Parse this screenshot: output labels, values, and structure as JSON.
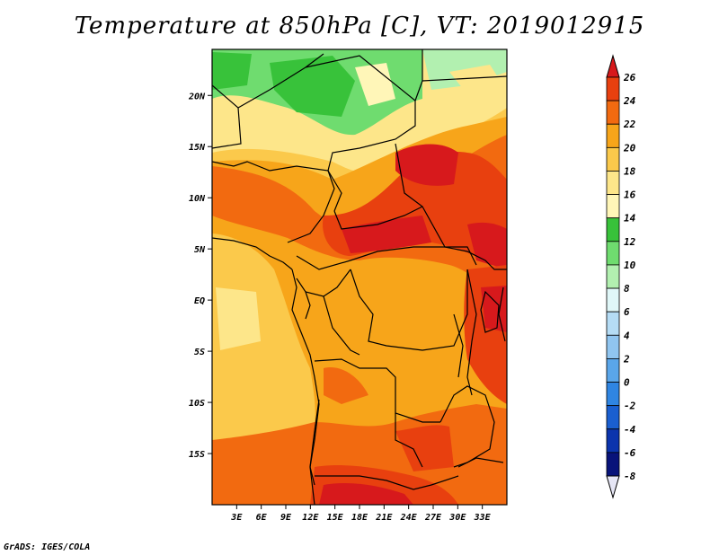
{
  "title": "Temperature at 850hPa [C], VT: 2019012915",
  "credit": "GrADS: IGES/COLA",
  "map": {
    "lon_range": [
      0,
      36
    ],
    "lat_range": [
      -20,
      24.5
    ],
    "lon_ticks": [
      "3E",
      "6E",
      "9E",
      "12E",
      "15E",
      "18E",
      "21E",
      "24E",
      "27E",
      "30E",
      "33E"
    ],
    "lat_ticks": [
      "20N",
      "15N",
      "10N",
      "5N",
      "EQ",
      "5S",
      "10S",
      "15S"
    ]
  },
  "colorbar": {
    "labels": [
      "26",
      "24",
      "22",
      "20",
      "18",
      "16",
      "14",
      "12",
      "10",
      "8",
      "6",
      "4",
      "2",
      "0",
      "-2",
      "-4",
      "-6",
      "-8"
    ],
    "colors": [
      "#d7191c",
      "#e8400f",
      "#f26a10",
      "#f7a51a",
      "#fbc94b",
      "#fde68a",
      "#fff6b8",
      "#38c23a",
      "#6fdc6f",
      "#b2f0b0",
      "#e0f7f8",
      "#b5dcf5",
      "#90c5f0",
      "#5aa6ea",
      "#2f85e2",
      "#1a5fd0",
      "#0b34ad",
      "#08137a"
    ]
  }
}
